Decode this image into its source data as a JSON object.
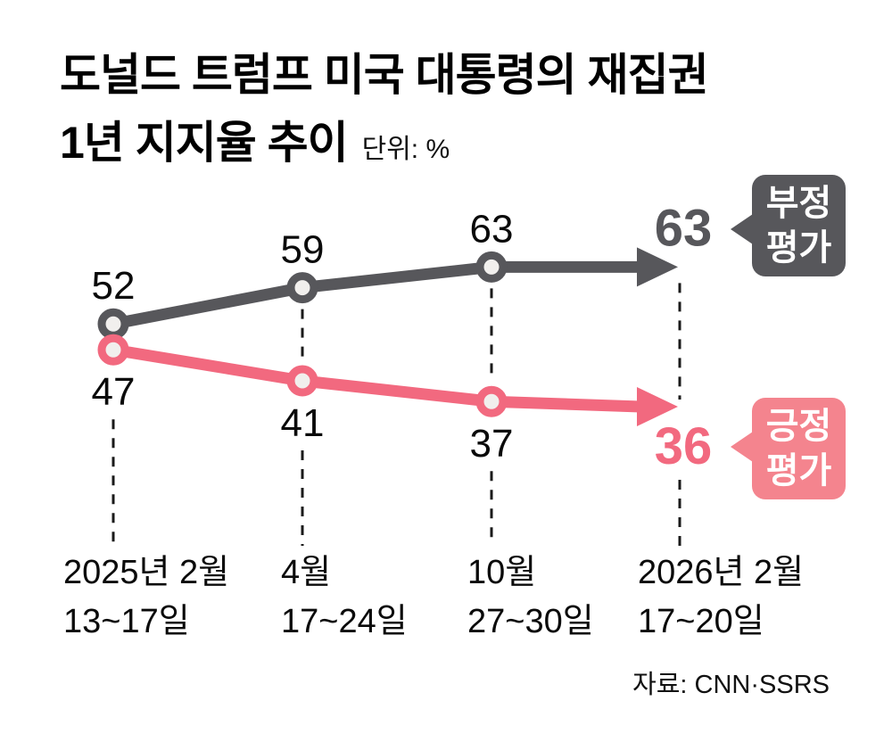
{
  "title": {
    "line1": "도널드 트럼프 미국 대통령의 재집권",
    "line2": "1년 지지율 추이",
    "unit_note": "단위: %"
  },
  "chart_data": {
    "type": "line",
    "unit": "%",
    "x_labels": [
      {
        "month": "2025년 2월",
        "days": "13~17일"
      },
      {
        "month": "4월",
        "days": "17~24일"
      },
      {
        "month": "10월",
        "days": "27~30일"
      },
      {
        "month": "2026년 2월",
        "days": "17~20일"
      }
    ],
    "series": [
      {
        "name": "부정 평가",
        "color": "#57575b",
        "values": [
          52,
          59,
          63,
          63
        ]
      },
      {
        "name": "긍정 평가",
        "color": "#f2697f",
        "values": [
          47,
          41,
          37,
          36
        ]
      }
    ],
    "ylim": [
      30,
      70
    ],
    "grid": false,
    "legend_position": "right-callouts",
    "source": "자료: CNN·SSRS"
  },
  "callouts": {
    "negative": {
      "line1": "부정",
      "line2": "평가",
      "end_value": "63"
    },
    "positive": {
      "line1": "긍정",
      "line2": "평가",
      "end_value": "36"
    }
  },
  "colors": {
    "negative": "#57575b",
    "positive": "#f2697f",
    "positive_callout": "#f4848e",
    "marker_fill": "#f1efed",
    "text": "#0a0a0a",
    "dash": "#1a1a1a",
    "background": "#ffffff"
  }
}
